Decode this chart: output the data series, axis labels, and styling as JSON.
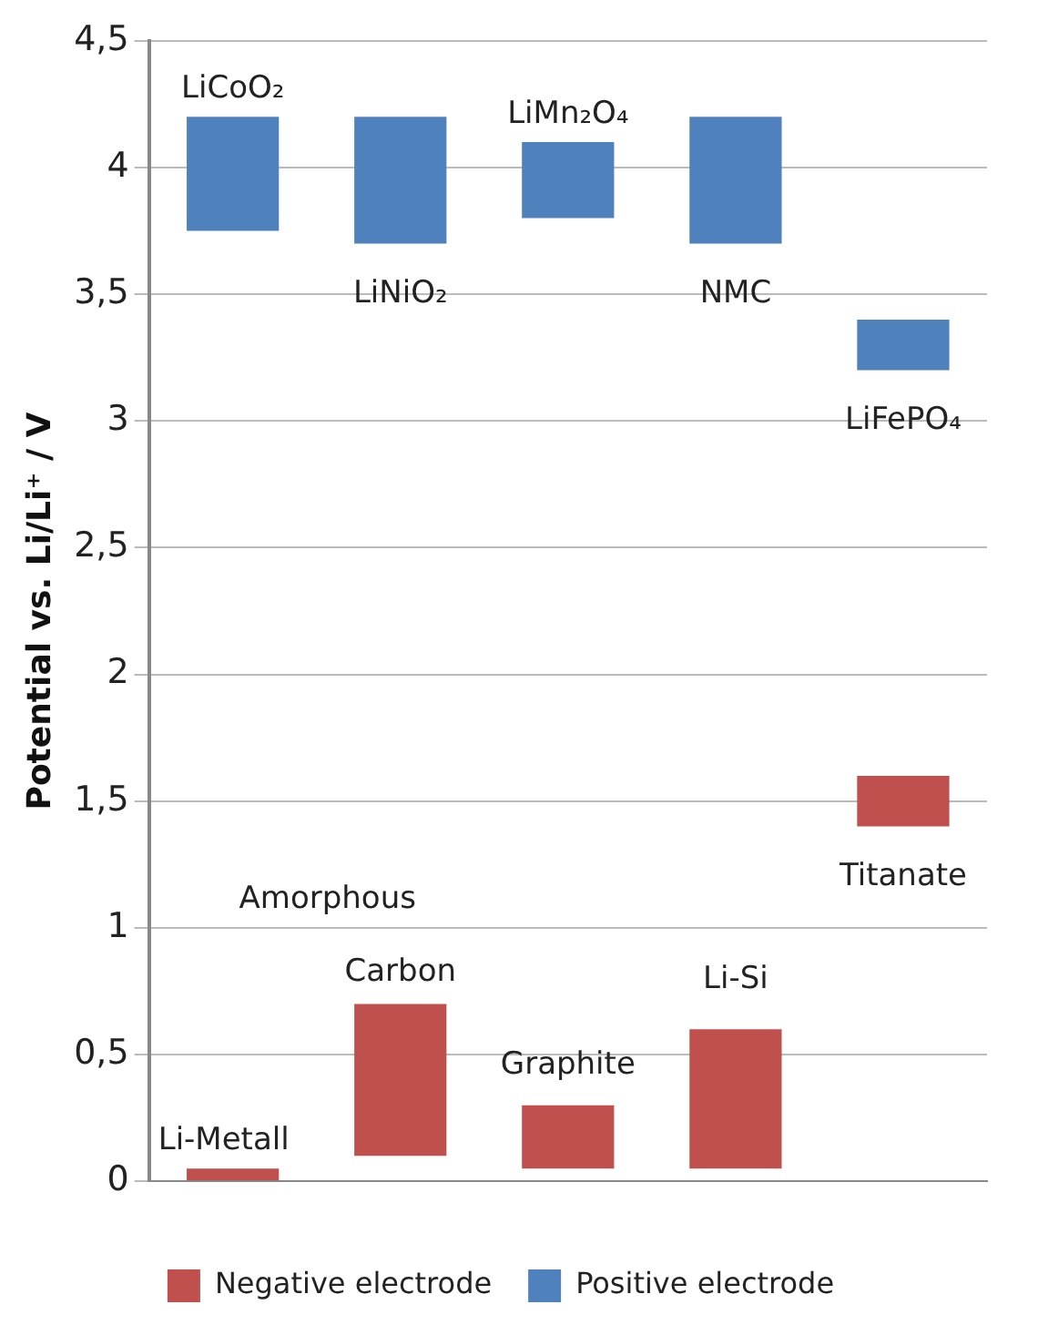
{
  "chart_data": {
    "type": "bar",
    "ylabel": "Potential vs. Li/Li⁺ / V",
    "categories": [
      null,
      null,
      null,
      null,
      null
    ],
    "series": [
      {
        "name": "Negative electrode",
        "color": "#c0504d",
        "base": [
          0,
          0.1,
          0.05,
          0.05,
          1.4
        ],
        "values": [
          0.05,
          0.6,
          0.25,
          0.55,
          0.2
        ]
      },
      {
        "name": "Positive electrode",
        "color": "#4f81bd",
        "base": [
          3.75,
          3.7,
          3.8,
          3.7,
          3.2
        ],
        "values": [
          0.45,
          0.5,
          0.3,
          0.5,
          0.2
        ]
      }
    ],
    "annotations": [
      "LiCoO₂",
      "LiNiO₂",
      "LiMn₂O₄",
      "NMC",
      "LiFePO₄",
      "Li-Metall",
      "Amorphous",
      "Carbon",
      "Graphite",
      "Li-Si",
      "Titanate"
    ],
    "ylim": [
      0,
      4.5
    ],
    "yticks": [
      {
        "value": 0,
        "label": "0"
      },
      {
        "value": 0.5,
        "label": "0,5"
      },
      {
        "value": 1,
        "label": "1"
      },
      {
        "value": 1.5,
        "label": "1,5"
      },
      {
        "value": 2,
        "label": "2"
      },
      {
        "value": 2.5,
        "label": "2,5"
      },
      {
        "value": 3,
        "label": "3"
      },
      {
        "value": 3.5,
        "label": "3,5"
      },
      {
        "value": 4,
        "label": "4"
      },
      {
        "value": 4.5,
        "label": "4,5"
      }
    ],
    "grid": "y",
    "legend": "bottom"
  }
}
